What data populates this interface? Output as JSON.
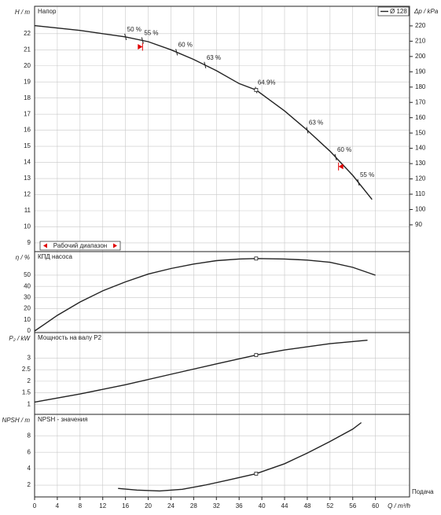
{
  "chart_data": [
    {
      "type": "line",
      "title": "Напор",
      "ylabel": "H / m",
      "y2label": "Δp / kPa",
      "series": [
        {
          "name": "Ø 128",
          "color": "#222222",
          "x": [
            0,
            8,
            16,
            20,
            24,
            28,
            32,
            36,
            39,
            44,
            48,
            52,
            56,
            59.4
          ],
          "values": [
            22.5,
            22.2,
            21.8,
            21.5,
            21.0,
            20.4,
            19.7,
            18.9,
            18.5,
            17.2,
            16.0,
            14.7,
            13.2,
            11.7
          ]
        }
      ],
      "ylim": [
        8.46,
        23.7
      ],
      "yticks": [
        9,
        10,
        11,
        12,
        13,
        14,
        15,
        16,
        17,
        18,
        19,
        20,
        21,
        22
      ],
      "y2lim": [
        72.5,
        232.8
      ],
      "y2ticks": [
        90,
        100,
        110,
        120,
        130,
        140,
        150,
        160,
        170,
        180,
        190,
        200,
        210,
        220
      ],
      "bep": {
        "x": 39,
        "y": 18.5
      },
      "annotations": [
        {
          "x": 16,
          "label": "50 %"
        },
        {
          "x": 19,
          "label": "55 %"
        },
        {
          "x": 25,
          "label": "60 %"
        },
        {
          "x": 30,
          "label": "63 %"
        },
        {
          "x": 39,
          "label": "64.9%"
        },
        {
          "x": 48,
          "label": "63 %"
        },
        {
          "x": 53,
          "label": "60 %"
        },
        {
          "x": 57,
          "label": "55 %"
        }
      ],
      "operating_range": {
        "label": "Рабочий диапазон",
        "x": [
          19,
          53.5
        ],
        "color": "#e00000"
      }
    },
    {
      "type": "line",
      "title": "КПД насоса",
      "ylabel": "η / %",
      "series": [
        {
          "color": "#222222",
          "x": [
            0,
            2,
            4,
            8,
            12,
            16,
            20,
            24,
            28,
            32,
            36,
            39,
            44,
            48,
            52,
            56,
            60
          ],
          "values": [
            0,
            7,
            14,
            26,
            36,
            44,
            51,
            56,
            60,
            63,
            64.5,
            64.9,
            64.5,
            63.5,
            61.5,
            57,
            50
          ]
        }
      ],
      "ylim": [
        -1.4,
        71.1
      ],
      "yticks": [
        0,
        10,
        20,
        30,
        40,
        50
      ],
      "bep": {
        "x": 39,
        "y": 64.9
      }
    },
    {
      "type": "line",
      "title": "Мощность на валу P2",
      "ylabel": "P₂ / kW",
      "series": [
        {
          "color": "#222222",
          "x": [
            0,
            8,
            16,
            24,
            32,
            39,
            44,
            52,
            58.6
          ],
          "values": [
            1.1,
            1.45,
            1.85,
            2.3,
            2.75,
            3.13,
            3.35,
            3.62,
            3.77
          ]
        }
      ],
      "ylim": [
        0.57,
        4.1
      ],
      "yticks": [
        1,
        1.5,
        2,
        2.5,
        3
      ],
      "bep": {
        "x": 39,
        "y": 3.13
      }
    },
    {
      "type": "line",
      "title": "NPSH - значения",
      "ylabel": "NPSH / m",
      "series": [
        {
          "color": "#222222",
          "x": [
            14.7,
            18,
            22,
            26,
            30,
            34,
            39,
            44,
            48,
            52,
            56,
            57.5
          ],
          "values": [
            1.6,
            1.4,
            1.3,
            1.5,
            2.0,
            2.6,
            3.4,
            4.6,
            5.9,
            7.3,
            8.8,
            9.6
          ]
        }
      ],
      "ylim": [
        0.57,
        10.6
      ],
      "yticks": [
        2,
        4,
        6,
        8
      ],
      "bep": {
        "x": 39,
        "y": 3.4
      },
      "xlabel": "Q / m³/h",
      "x_title": "Подача",
      "xlim": [
        0,
        66
      ],
      "xticks": [
        0,
        4,
        8,
        12,
        16,
        20,
        24,
        28,
        32,
        36,
        40,
        44,
        48,
        52,
        56,
        60
      ]
    }
  ]
}
